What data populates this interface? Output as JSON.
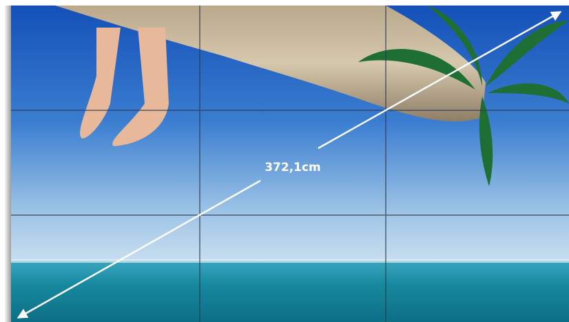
{
  "measurement": {
    "label": "372,1cm"
  }
}
